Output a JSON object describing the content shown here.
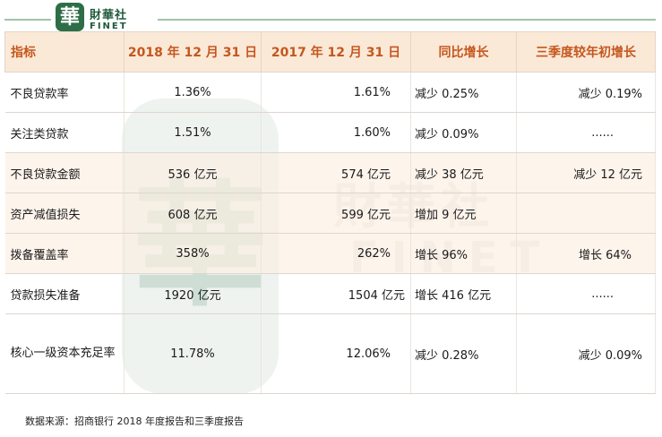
{
  "brand": {
    "logo_char": "華",
    "name_cn": "財華社",
    "name_en": "FINET"
  },
  "watermark": {
    "big_char": "華",
    "cn": "財華社",
    "en": "FINET"
  },
  "table": {
    "headers": [
      "指标",
      "2018 年 12 月 31 日",
      "2017 年 12 月 31 日",
      "同比增长",
      "三季度较年初增长"
    ],
    "rows": [
      {
        "name": "不良贷款率",
        "v2018": "1.36%",
        "v2017": "1.61%",
        "yoy": "减少 0.25%",
        "q3": "减少 0.19%"
      },
      {
        "name": "关注类贷款",
        "v2018": "1.51%",
        "v2017": "1.60%",
        "yoy": "减少 0.09%",
        "q3": "......"
      },
      {
        "name": "不良贷款金额",
        "v2018": "536 亿元",
        "v2017": "574 亿元",
        "yoy": "减少 38 亿元",
        "q3": "减少 12 亿元"
      },
      {
        "name": "资产减值损失",
        "v2018": "608 亿元",
        "v2017": "599 亿元",
        "yoy": "增加 9 亿元",
        "q3": ""
      },
      {
        "name": "拨备覆盖率",
        "v2018": "358%",
        "v2017": "262%",
        "yoy": "增长 96%",
        "q3": "增长 64%"
      },
      {
        "name": "贷款损失准备",
        "v2018": "1920 亿元",
        "v2017": "1504 亿元",
        "yoy": "增长 416 亿元",
        "q3": "......"
      },
      {
        "name": "核心一级资本充足率",
        "v2018": "11.78%",
        "v2017": "12.06%",
        "yoy": "减少 0.28%",
        "q3": "减少 0.09%"
      }
    ]
  },
  "source": "数据来源：招商银行 2018 年度报告和三季度报告",
  "colors": {
    "header_bg": "#fbe9d8",
    "header_text": "#c4571d",
    "alt_row_bg": "#fceee2",
    "brand_green": "#2e6e47"
  }
}
